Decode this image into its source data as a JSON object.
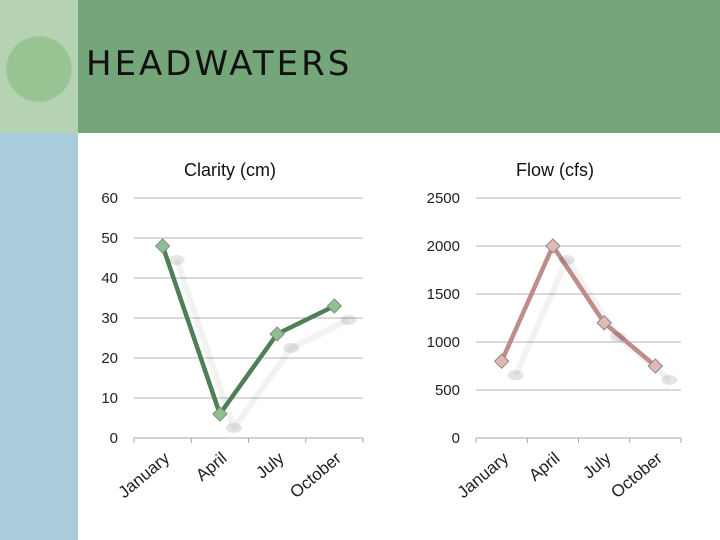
{
  "slide": {
    "title": "HEADWATERS"
  },
  "colors": {
    "header_green": "#74a67a",
    "corner_green": "#b5d3b2",
    "left_bar_blue": "#a8ccd9",
    "clarity_line": "#4f7f57",
    "clarity_marker": "#8bc08f",
    "flow_line": "#c08c8a",
    "flow_marker": "#e2b8b5"
  },
  "chart_data": [
    {
      "type": "line",
      "title": "Clarity (cm)",
      "categories": [
        "January",
        "April",
        "July",
        "October"
      ],
      "values": [
        48,
        6,
        26,
        33
      ],
      "ylim": [
        0,
        60
      ],
      "yticks": [
        "0",
        "10",
        "20",
        "30",
        "40",
        "50",
        "60"
      ],
      "grid": true,
      "legend": "none"
    },
    {
      "type": "line",
      "title": "Flow (cfs)",
      "categories": [
        "January",
        "April",
        "July",
        "October"
      ],
      "values": [
        800,
        2000,
        1200,
        750
      ],
      "ylim": [
        0,
        2500
      ],
      "yticks": [
        "0",
        "500",
        "1000",
        "1500",
        "2000",
        "2500"
      ],
      "grid": true,
      "legend": "none"
    }
  ]
}
